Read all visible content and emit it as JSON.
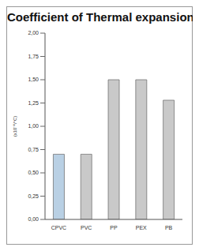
{
  "chart_data": {
    "type": "bar",
    "title": "Coefficient of Thermal expansion",
    "y_label": "(x10⁻⁴/°C)",
    "categories": [
      "CPVC",
      "PVC",
      "PP",
      "PEX",
      "PB"
    ],
    "values": [
      0.7,
      0.7,
      1.5,
      1.5,
      1.28
    ],
    "colors": [
      "#b9d0e4",
      "#c9c9c9",
      "#c9c9c9",
      "#c9c9c9",
      "#c9c9c9"
    ],
    "ylim": [
      0,
      2
    ],
    "yticks": [
      {
        "value": 0,
        "label": "0,00"
      },
      {
        "value": 0.25,
        "label": "0,25"
      },
      {
        "value": 0.5,
        "label": "0,50"
      },
      {
        "value": 0.75,
        "label": "0,75"
      },
      {
        "value": 1,
        "label": "1,00"
      },
      {
        "value": 1.25,
        "label": "1,25"
      },
      {
        "value": 1.5,
        "label": "1,50"
      },
      {
        "value": 1.75,
        "label": "1,75"
      },
      {
        "value": 2,
        "label": "2,00"
      }
    ],
    "grid": false
  }
}
